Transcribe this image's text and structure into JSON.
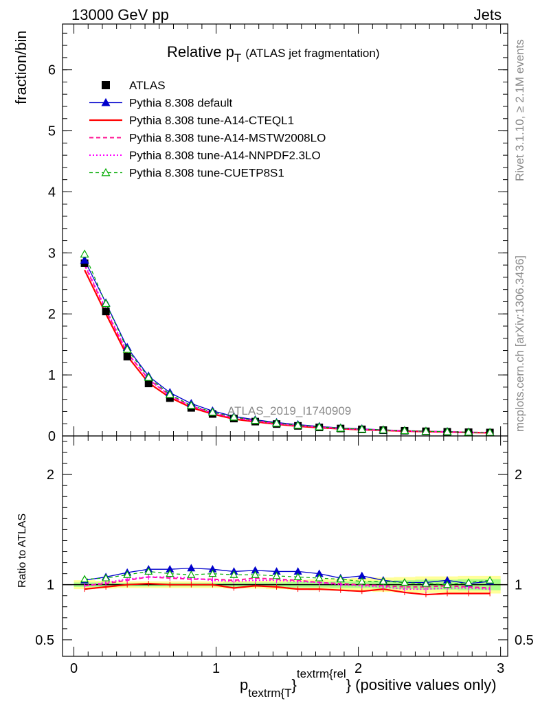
{
  "header": {
    "left": "13000 GeV pp",
    "right": "Jets"
  },
  "side_labels": {
    "rivet": "Rivet 3.1.10, ≥ 2.1M events",
    "mcplots": "mcplots.cern.ch [arXiv:1306.3436]"
  },
  "watermark": "ATLAS_2019_I1740909",
  "chart_data": [
    {
      "type": "line",
      "panel": "main",
      "title_main": "Relative p",
      "title_sub": "T",
      "title_rest": "(ATLAS jet fragmentation)",
      "ylabel": "fraction/bin",
      "xlim": [
        -0.08,
        3.05
      ],
      "ylim": [
        0,
        6.75
      ],
      "yticks": [
        0,
        1,
        2,
        3,
        4,
        5,
        6
      ],
      "x": [
        0.075,
        0.225,
        0.375,
        0.525,
        0.675,
        0.825,
        0.975,
        1.125,
        1.275,
        1.425,
        1.575,
        1.725,
        1.875,
        2.025,
        2.175,
        2.325,
        2.475,
        2.625,
        2.775,
        2.925
      ],
      "series": [
        {
          "name": "ATLAS",
          "style": "data",
          "color": "#000000",
          "values": [
            2.83,
            2.04,
            1.3,
            0.86,
            0.62,
            0.46,
            0.36,
            0.285,
            0.235,
            0.195,
            0.165,
            0.14,
            0.122,
            0.108,
            0.095,
            0.085,
            0.076,
            0.068,
            0.061,
            0.056
          ]
        },
        {
          "name": "Pythia 8.308 default",
          "style": "solid-triangle",
          "color": "#0000cc",
          "values": [
            2.88,
            2.18,
            1.45,
            0.98,
            0.71,
            0.53,
            0.41,
            0.32,
            0.265,
            0.22,
            0.186,
            0.156,
            0.131,
            0.117,
            0.099,
            0.087,
            0.078,
            0.071,
            0.062,
            0.058
          ]
        },
        {
          "name": "Pythia 8.308 tune-A14-CTEQL1",
          "style": "solid",
          "color": "#ff0000",
          "values": [
            2.72,
            2.0,
            1.31,
            0.87,
            0.63,
            0.465,
            0.36,
            0.277,
            0.232,
            0.192,
            0.158,
            0.135,
            0.117,
            0.101,
            0.091,
            0.079,
            0.07,
            0.063,
            0.056,
            0.052
          ]
        },
        {
          "name": "Pythia 8.308 tune-A14-MSTW2008LO",
          "style": "dashed",
          "color": "#ff1493",
          "values": [
            2.8,
            2.06,
            1.36,
            0.93,
            0.66,
            0.49,
            0.38,
            0.3,
            0.25,
            0.205,
            0.172,
            0.145,
            0.124,
            0.108,
            0.095,
            0.084,
            0.075,
            0.068,
            0.06,
            0.055
          ]
        },
        {
          "name": "Pythia 8.308 tune-A14-NNPDF2.3LO",
          "style": "dotted",
          "color": "#ff00ff",
          "values": [
            2.82,
            2.08,
            1.37,
            0.92,
            0.665,
            0.49,
            0.375,
            0.295,
            0.245,
            0.203,
            0.17,
            0.143,
            0.122,
            0.107,
            0.093,
            0.082,
            0.073,
            0.066,
            0.059,
            0.054
          ]
        },
        {
          "name": "Pythia 8.308 tune-CUETP8S1",
          "style": "dashed-open-triangle",
          "color": "#00aa00",
          "values": [
            2.98,
            2.17,
            1.42,
            0.96,
            0.68,
            0.5,
            0.39,
            0.31,
            0.255,
            0.21,
            0.176,
            0.149,
            0.127,
            0.111,
            0.098,
            0.087,
            0.077,
            0.069,
            0.062,
            0.058
          ]
        }
      ]
    },
    {
      "type": "line",
      "panel": "ratio",
      "ylabel": "Ratio to ATLAS",
      "xlabel_main": "p",
      "xlabel_sub": "textrm{T",
      "xlabel_sup": "textrm{rel",
      "xlabel_brace": "}",
      "xlabel_rest": "} (positive values only)",
      "xlim": [
        -0.08,
        3.05
      ],
      "ylim": [
        0.35,
        2.35
      ],
      "yticks": [
        0.5,
        1,
        2
      ],
      "ytick_labels": [
        "0.5",
        "1",
        "2"
      ],
      "xticks": [
        0,
        1,
        2,
        3
      ],
      "xtick_labels": [
        "0",
        "1",
        "2",
        "3"
      ],
      "band_inner": [
        0.02,
        0.02,
        0.015,
        0.015,
        0.015,
        0.015,
        0.015,
        0.02,
        0.02,
        0.02,
        0.025,
        0.025,
        0.03,
        0.03,
        0.035,
        0.04,
        0.045,
        0.045,
        0.05,
        0.05
      ],
      "band_outer": [
        0.04,
        0.035,
        0.03,
        0.03,
        0.03,
        0.03,
        0.03,
        0.035,
        0.035,
        0.04,
        0.045,
        0.05,
        0.055,
        0.06,
        0.065,
        0.07,
        0.075,
        0.075,
        0.08,
        0.08
      ],
      "series": [
        {
          "name": "Pythia 8.308 default",
          "color": "#0000cc",
          "values": [
            1.04,
            1.07,
            1.11,
            1.14,
            1.14,
            1.15,
            1.14,
            1.12,
            1.13,
            1.12,
            1.12,
            1.1,
            1.06,
            1.08,
            1.04,
            1.02,
            1.02,
            1.04,
            1.01,
            1.03
          ]
        },
        {
          "name": "Pythia 8.308 tune-A14-CTEQL1",
          "color": "#ff0000",
          "values": [
            0.96,
            0.98,
            1.0,
            1.01,
            1.0,
            1.0,
            1.0,
            0.97,
            0.99,
            0.98,
            0.96,
            0.96,
            0.95,
            0.94,
            0.96,
            0.93,
            0.91,
            0.92,
            0.92,
            0.92
          ]
        },
        {
          "name": "Pythia 8.308 tune-A14-MSTW2008LO",
          "color": "#ff1493",
          "values": [
            0.99,
            1.01,
            1.04,
            1.07,
            1.06,
            1.05,
            1.05,
            1.04,
            1.06,
            1.05,
            1.04,
            1.02,
            1.01,
            1.0,
            0.99,
            0.98,
            0.98,
            0.99,
            0.98,
            0.97
          ]
        },
        {
          "name": "Pythia 8.308 tune-A14-NNPDF2.3LO",
          "color": "#ff00ff",
          "values": [
            0.99,
            1.02,
            1.05,
            1.07,
            1.07,
            1.06,
            1.04,
            1.03,
            1.04,
            1.04,
            1.03,
            1.02,
            1.0,
            0.99,
            0.98,
            0.96,
            0.96,
            0.97,
            0.97,
            0.96
          ]
        },
        {
          "name": "Pythia 8.308 tune-CUETP8S1",
          "color": "#00aa00",
          "values": [
            1.05,
            1.06,
            1.09,
            1.12,
            1.1,
            1.09,
            1.1,
            1.09,
            1.09,
            1.08,
            1.07,
            1.06,
            1.05,
            1.03,
            1.03,
            1.02,
            1.01,
            1.0,
            1.02,
            1.04
          ]
        }
      ]
    }
  ]
}
